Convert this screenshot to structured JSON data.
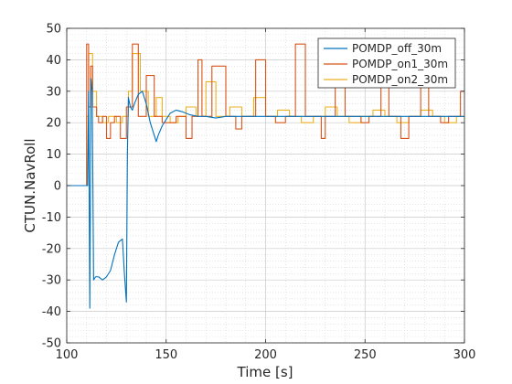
{
  "chart_data": {
    "type": "line",
    "title": "",
    "xlabel": "Time [s]",
    "ylabel": "CTUN.NavRoll",
    "xlim": [
      100,
      300
    ],
    "ylim": [
      -50,
      50
    ],
    "xticks": [
      100,
      150,
      200,
      250,
      300
    ],
    "yticks": [
      -50,
      -40,
      -30,
      -20,
      -10,
      0,
      10,
      20,
      30,
      40,
      50
    ],
    "grid": true,
    "minor_grid": true,
    "legend_position": "top-right",
    "series": [
      {
        "name": "POMDP_off_30m",
        "color": "#0072BD",
        "x": [
          100,
          110.5,
          111,
          111.6,
          112.2,
          112.8,
          113.5,
          114.5,
          116,
          118,
          120,
          122,
          124,
          126,
          128,
          129,
          130,
          130.5,
          131,
          132,
          133,
          134,
          136,
          138,
          140,
          142,
          144,
          145,
          146,
          148,
          150,
          152,
          155,
          158,
          162,
          166,
          170,
          175,
          180,
          190,
          200,
          210,
          220,
          230,
          240,
          250,
          260,
          270,
          280,
          290,
          300
        ],
        "y": [
          0,
          0,
          30,
          -39,
          34,
          30,
          -30,
          -29,
          -29,
          -30,
          -29,
          -27,
          -22,
          -18,
          -17,
          -28,
          -37,
          10,
          28,
          25,
          24,
          26,
          29,
          30,
          26,
          20,
          16,
          14,
          16,
          19,
          21,
          23,
          24,
          23.5,
          22.5,
          22,
          22,
          21.5,
          22,
          22,
          22,
          22,
          22,
          22,
          22,
          22,
          22,
          22,
          22,
          22,
          22
        ]
      },
      {
        "name": "POMDP_on1_30m",
        "color": "#D95319",
        "x": [
          100,
          110,
          110,
          111,
          111,
          112,
          112,
          113,
          113,
          115,
          115,
          116,
          116,
          118,
          118,
          120,
          120,
          122,
          122,
          124,
          124,
          127,
          127,
          130,
          130,
          133,
          133,
          136,
          136,
          140,
          140,
          144,
          144,
          148,
          148,
          155,
          155,
          160,
          160,
          163,
          163,
          166,
          166,
          168,
          168,
          173,
          173,
          180,
          180,
          185,
          185,
          188,
          188,
          195,
          195,
          200,
          200,
          205,
          205,
          210,
          210,
          215,
          215,
          220,
          220,
          228,
          228,
          230,
          230,
          235,
          235,
          240,
          240,
          248,
          248,
          252,
          252,
          258,
          258,
          262,
          262,
          268,
          268,
          272,
          272,
          278,
          278,
          282,
          282,
          288,
          288,
          292,
          292,
          298,
          298,
          300
        ],
        "y": [
          0,
          0,
          45,
          45,
          25,
          25,
          38,
          38,
          25,
          25,
          22,
          22,
          20,
          20,
          22,
          22,
          15,
          15,
          20,
          20,
          22,
          22,
          15,
          15,
          25,
          25,
          45,
          45,
          22,
          22,
          35,
          35,
          22,
          22,
          20,
          20,
          22,
          22,
          15,
          15,
          22,
          22,
          40,
          40,
          22,
          22,
          38,
          38,
          22,
          22,
          18,
          18,
          22,
          22,
          40,
          40,
          22,
          22,
          20,
          20,
          22,
          22,
          45,
          45,
          22,
          22,
          15,
          15,
          22,
          22,
          38,
          38,
          22,
          22,
          20,
          20,
          22,
          22,
          45,
          45,
          22,
          22,
          15,
          15,
          22,
          22,
          40,
          40,
          22,
          22,
          20,
          20,
          22,
          22,
          30,
          30
        ]
      },
      {
        "name": "POMDP_on2_30m",
        "color": "#EDB120",
        "x": [
          100,
          110,
          110,
          111,
          111,
          113,
          113,
          115,
          115,
          118,
          118,
          121,
          121,
          125,
          125,
          128,
          128,
          131,
          131,
          133,
          133,
          137,
          137,
          141,
          141,
          145,
          145,
          148,
          148,
          152,
          152,
          156,
          156,
          160,
          160,
          165,
          165,
          170,
          170,
          175,
          175,
          182,
          182,
          188,
          188,
          194,
          194,
          200,
          200,
          206,
          206,
          212,
          212,
          218,
          218,
          224,
          224,
          230,
          230,
          236,
          236,
          242,
          242,
          248,
          248,
          254,
          254,
          260,
          260,
          266,
          266,
          272,
          272,
          278,
          278,
          284,
          284,
          290,
          290,
          296,
          296,
          300
        ],
        "y": [
          0,
          0,
          22,
          22,
          42,
          42,
          30,
          30,
          22,
          22,
          20,
          20,
          22,
          22,
          20,
          20,
          22,
          22,
          30,
          30,
          42,
          42,
          30,
          30,
          22,
          22,
          28,
          28,
          22,
          22,
          20,
          20,
          22,
          22,
          25,
          25,
          22,
          22,
          33,
          33,
          22,
          22,
          25,
          25,
          22,
          22,
          28,
          28,
          22,
          22,
          24,
          24,
          22,
          22,
          20,
          20,
          22,
          22,
          25,
          25,
          22,
          22,
          20,
          20,
          22,
          22,
          24,
          24,
          22,
          22,
          20,
          20,
          22,
          22,
          24,
          24,
          22,
          22,
          20,
          20,
          22,
          22
        ]
      }
    ]
  }
}
